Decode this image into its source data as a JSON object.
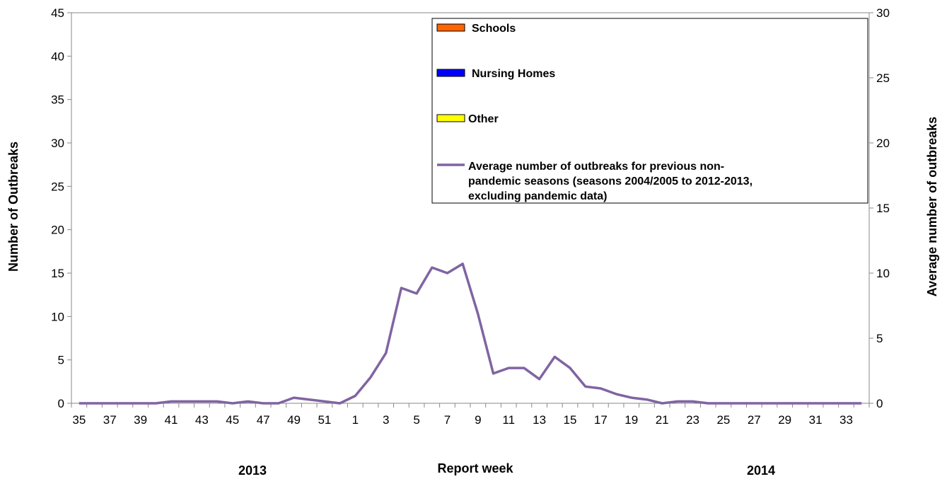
{
  "chart_data": {
    "type": "line",
    "xlabel": "Report week",
    "ylabel": "Number of Outbreaks",
    "y2label": "Average number of outbreaks",
    "ylim": [
      0,
      45
    ],
    "y2lim": [
      0,
      30
    ],
    "yticks": [
      "0",
      "5",
      "10",
      "15",
      "20",
      "25",
      "30",
      "35",
      "40",
      "45"
    ],
    "y2ticks": [
      "0",
      "5",
      "10",
      "15",
      "20",
      "25",
      "30"
    ],
    "weeks": [
      "35",
      "36",
      "37",
      "38",
      "39",
      "40",
      "41",
      "42",
      "43",
      "44",
      "45",
      "46",
      "47",
      "48",
      "49",
      "50",
      "51",
      "52",
      "1",
      "2",
      "3",
      "4",
      "5",
      "6",
      "7",
      "8",
      "9",
      "10",
      "11",
      "12",
      "13",
      "14",
      "15",
      "16",
      "17",
      "18",
      "19",
      "20",
      "21",
      "22",
      "23",
      "24",
      "25",
      "26",
      "27",
      "28",
      "29",
      "30",
      "31",
      "32",
      "33",
      "34"
    ],
    "xtick_labels": [
      "35",
      "37",
      "39",
      "41",
      "43",
      "45",
      "47",
      "49",
      "51",
      "1",
      "3",
      "5",
      "7",
      "9",
      "11",
      "13",
      "15",
      "17",
      "19",
      "21",
      "23",
      "25",
      "27",
      "29",
      "31",
      "33"
    ],
    "year_labels": {
      "left": "2013",
      "right": "2014"
    },
    "legend": {
      "position": "top-right",
      "entries": [
        {
          "label": "Schools",
          "kind": "bar",
          "color": "#ff6600"
        },
        {
          "label": "Nursing Homes",
          "kind": "bar",
          "color": "#0000ff"
        },
        {
          "label": "Other",
          "kind": "bar",
          "color": "#ffff00"
        },
        {
          "label": "Average number of outbreaks for previous non-pandemic seasons (seasons 2004/2005 to 2012-2013, excluding pandemic data)",
          "kind": "line",
          "color": "#8064a2",
          "lines": [
            "Average number of outbreaks for previous non-",
            "pandemic seasons (seasons 2004/2005 to 2012-2013,",
            "excluding pandemic data)"
          ]
        }
      ]
    },
    "series": [
      {
        "name": "Schools",
        "type": "bar",
        "axis": "left",
        "color": "#ff6600",
        "values": []
      },
      {
        "name": "Nursing Homes",
        "type": "bar",
        "axis": "left",
        "color": "#0000ff",
        "values": []
      },
      {
        "name": "Other",
        "type": "bar",
        "axis": "left",
        "color": "#ffff00",
        "values": []
      },
      {
        "name": "Average number of outbreaks for previous non-pandemic seasons (seasons 2004/2005 to 2012-2013, excluding pandemic data)",
        "type": "line",
        "axis": "right",
        "color": "#8064a2",
        "values": [
          0,
          0,
          0,
          0,
          0,
          0,
          0.14,
          0.14,
          0.14,
          0.14,
          0,
          0.14,
          0,
          0,
          0.43,
          0.29,
          0.14,
          0,
          0.57,
          2,
          3.86,
          8.86,
          8.43,
          10.43,
          10,
          10.71,
          6.86,
          2.29,
          2.71,
          2.71,
          1.86,
          3.57,
          2.71,
          1.29,
          1.14,
          0.71,
          0.43,
          0.29,
          0,
          0.14,
          0.14,
          0,
          0,
          0,
          0,
          0,
          0,
          0,
          0,
          0,
          0,
          0
        ]
      }
    ],
    "grid": false
  }
}
